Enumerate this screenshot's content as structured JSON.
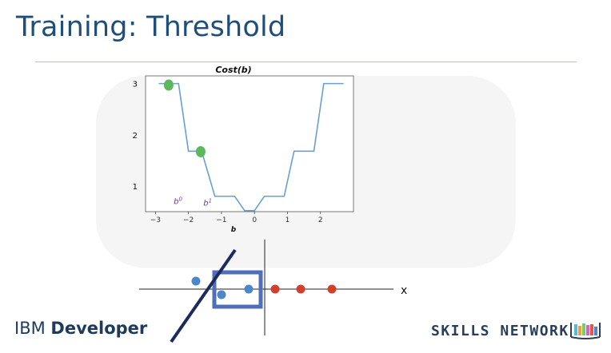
{
  "slide": {
    "title": "Training: Threshold"
  },
  "branding": {
    "left_light": "IBM ",
    "left_bold": "Developer",
    "right": "SKILLS NETWORK",
    "right_icon": "books-icon"
  },
  "chart_data": {
    "type": "line",
    "title": "Cost(b)",
    "xlabel": "b",
    "ylabel": "",
    "xlim": [
      -3.3,
      3.0
    ],
    "ylim": [
      0.5,
      3.15
    ],
    "xticks": [
      -3,
      -2,
      -1,
      0,
      1,
      2
    ],
    "xtick_labels": [
      "−3",
      "−2",
      "−1",
      "0",
      "1",
      "2"
    ],
    "yticks": [
      1,
      2,
      3
    ],
    "ytick_labels": [
      "1",
      "2",
      "3"
    ],
    "series": [
      {
        "x": [
          -2.9,
          -2.3,
          -2.0,
          -1.6,
          -1.2,
          -0.6,
          -0.3,
          0.0,
          0.3,
          0.9,
          1.2,
          1.8,
          2.1,
          2.7
        ],
        "y": [
          3.0,
          3.0,
          1.68,
          1.68,
          0.8,
          0.8,
          0.52,
          0.52,
          0.8,
          0.8,
          1.68,
          1.68,
          3.0,
          3.0
        ],
        "color": "#6a9fd0"
      }
    ],
    "markers": [
      {
        "x": -2.6,
        "y": 2.97,
        "color": "#5cb85c"
      },
      {
        "x": -1.63,
        "y": 1.67,
        "color": "#5cb85c"
      }
    ],
    "annotations": [
      {
        "text": "b",
        "sup": "0",
        "x": -2.45,
        "y": 0.65,
        "color": "#6b3fa0"
      },
      {
        "text": "b",
        "sup": "1",
        "x": -1.55,
        "y": 0.62,
        "color": "#6b3fa0"
      }
    ]
  },
  "diagram": {
    "axis_label": "x",
    "blue_points": [
      "blue-point-1",
      "blue-point-2",
      "blue-point-3"
    ],
    "red_points": [
      "red-point-1",
      "red-point-2",
      "red-point-3"
    ],
    "colors": {
      "blue": "#4a86c8",
      "red": "#d2402c",
      "box": "#4f6fb8",
      "line": "#1d2a5c",
      "axis": "#222222"
    }
  }
}
